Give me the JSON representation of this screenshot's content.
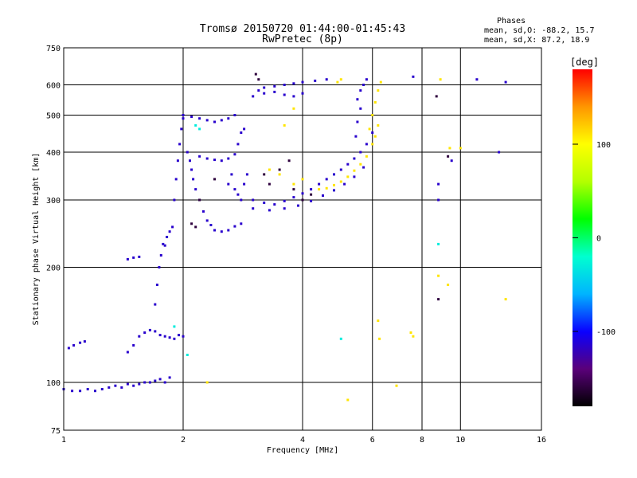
{
  "chart_data": {
    "type": "scatter",
    "title": "Tromsø 20150720 01:44:00-01:45:43",
    "subtitle": "RwPretec (8p)",
    "xlabel": "Frequency [MHz]",
    "ylabel": "Stationary phase Virtual Height [km]",
    "x_scale": "log",
    "y_scale": "log",
    "xlim": [
      1,
      16
    ],
    "ylim": [
      75,
      750
    ],
    "x_ticks": [
      1,
      2,
      4,
      6,
      8,
      10,
      16
    ],
    "y_ticks": [
      75,
      100,
      200,
      300,
      400,
      500,
      600,
      750
    ],
    "grid": true,
    "stats": {
      "header": "Phases",
      "line_O": "mean, sd,O: -88.2, 15.7",
      "line_X": "mean, sd,X:  87.2, 18.9"
    },
    "colorbar": {
      "label": "[deg]",
      "ticks": [
        100,
        0,
        -100
      ],
      "range": [
        -180,
        180
      ],
      "colors": [
        "#000000",
        "#5a007a",
        "#0a00ff",
        "#00b4ff",
        "#00ffd0",
        "#00ff00",
        "#b4ff00",
        "#ffff00",
        "#ff9600",
        "#ff0000"
      ]
    },
    "series": [
      {
        "color_phase": -115,
        "points": [
          [
            1.0,
            96
          ],
          [
            1.05,
            95
          ],
          [
            1.1,
            95
          ],
          [
            1.15,
            96
          ],
          [
            1.2,
            95
          ],
          [
            1.25,
            96
          ],
          [
            1.3,
            97
          ],
          [
            1.35,
            98
          ],
          [
            1.4,
            97
          ],
          [
            1.45,
            99
          ],
          [
            1.5,
            98
          ],
          [
            1.55,
            99
          ],
          [
            1.6,
            100
          ],
          [
            1.65,
            100
          ],
          [
            1.7,
            101
          ],
          [
            1.75,
            102
          ],
          [
            1.8,
            100
          ],
          [
            1.85,
            103
          ],
          [
            1.03,
            123
          ],
          [
            1.06,
            125
          ],
          [
            1.1,
            127
          ],
          [
            1.13,
            128
          ],
          [
            1.45,
            120
          ],
          [
            1.5,
            125
          ],
          [
            1.55,
            132
          ],
          [
            1.6,
            135
          ],
          [
            1.65,
            137
          ],
          [
            1.7,
            136
          ],
          [
            1.75,
            133
          ],
          [
            1.8,
            132
          ],
          [
            1.85,
            131
          ],
          [
            1.9,
            130
          ],
          [
            1.95,
            133
          ],
          [
            2.0,
            132
          ],
          [
            1.45,
            210
          ],
          [
            1.5,
            212
          ],
          [
            1.55,
            213
          ],
          [
            1.7,
            160
          ],
          [
            1.72,
            180
          ],
          [
            1.74,
            200
          ],
          [
            1.76,
            215
          ],
          [
            1.78,
            230
          ],
          [
            1.8,
            228
          ],
          [
            1.82,
            240
          ],
          [
            1.85,
            248
          ],
          [
            1.88,
            255
          ],
          [
            1.9,
            300
          ],
          [
            1.92,
            340
          ],
          [
            1.94,
            380
          ],
          [
            1.96,
            420
          ],
          [
            1.98,
            460
          ],
          [
            2.0,
            490
          ],
          [
            2.05,
            400
          ],
          [
            2.08,
            380
          ],
          [
            2.1,
            360
          ],
          [
            2.12,
            340
          ],
          [
            2.15,
            320
          ],
          [
            2.2,
            300
          ],
          [
            2.25,
            280
          ],
          [
            2.3,
            265
          ],
          [
            2.35,
            258
          ],
          [
            2.4,
            250
          ],
          [
            2.5,
            248
          ],
          [
            2.6,
            250
          ],
          [
            2.7,
            256
          ],
          [
            2.8,
            260
          ],
          [
            2.0,
            500
          ],
          [
            2.1,
            495
          ],
          [
            2.2,
            490
          ],
          [
            2.3,
            485
          ],
          [
            2.4,
            480
          ],
          [
            2.5,
            485
          ],
          [
            2.6,
            490
          ],
          [
            2.7,
            500
          ],
          [
            2.2,
            390
          ],
          [
            2.3,
            385
          ],
          [
            2.4,
            382
          ],
          [
            2.5,
            380
          ],
          [
            2.6,
            385
          ],
          [
            2.7,
            395
          ],
          [
            2.75,
            420
          ],
          [
            2.8,
            450
          ],
          [
            2.85,
            460
          ],
          [
            2.6,
            330
          ],
          [
            2.65,
            350
          ],
          [
            2.7,
            320
          ],
          [
            2.75,
            310
          ],
          [
            2.8,
            300
          ],
          [
            2.85,
            330
          ],
          [
            2.9,
            350
          ],
          [
            3.0,
            560
          ],
          [
            3.1,
            580
          ],
          [
            3.2,
            590
          ],
          [
            3.4,
            595
          ],
          [
            3.6,
            600
          ],
          [
            3.8,
            605
          ],
          [
            4.0,
            610
          ],
          [
            4.3,
            615
          ],
          [
            4.6,
            620
          ],
          [
            3.2,
            570
          ],
          [
            3.4,
            575
          ],
          [
            3.6,
            565
          ],
          [
            3.8,
            560
          ],
          [
            4.0,
            570
          ],
          [
            3.0,
            300
          ],
          [
            3.2,
            295
          ],
          [
            3.4,
            292
          ],
          [
            3.6,
            298
          ],
          [
            3.8,
            305
          ],
          [
            4.0,
            312
          ],
          [
            4.2,
            320
          ],
          [
            4.4,
            330
          ],
          [
            4.6,
            340
          ],
          [
            4.8,
            350
          ],
          [
            5.0,
            360
          ],
          [
            5.2,
            372
          ],
          [
            5.4,
            385
          ],
          [
            5.6,
            400
          ],
          [
            5.8,
            420
          ],
          [
            6.0,
            450
          ],
          [
            3.0,
            285
          ],
          [
            3.3,
            282
          ],
          [
            3.6,
            285
          ],
          [
            3.9,
            290
          ],
          [
            4.2,
            298
          ],
          [
            4.5,
            308
          ],
          [
            4.8,
            318
          ],
          [
            5.1,
            330
          ],
          [
            5.4,
            345
          ],
          [
            5.7,
            365
          ],
          [
            5.5,
            550
          ],
          [
            5.6,
            580
          ],
          [
            5.7,
            600
          ],
          [
            5.8,
            620
          ],
          [
            5.6,
            520
          ],
          [
            5.5,
            480
          ],
          [
            5.45,
            440
          ],
          [
            8.8,
            300
          ],
          [
            8.8,
            330
          ],
          [
            9.5,
            380
          ],
          [
            12.5,
            400
          ],
          [
            11.0,
            620
          ],
          [
            13.0,
            610
          ],
          [
            7.6,
            630
          ]
        ]
      },
      {
        "color_phase": 110,
        "points": [
          [
            4.4,
            320
          ],
          [
            4.6,
            322
          ],
          [
            4.8,
            328
          ],
          [
            5.0,
            335
          ],
          [
            5.2,
            345
          ],
          [
            5.4,
            358
          ],
          [
            5.6,
            372
          ],
          [
            5.8,
            390
          ],
          [
            6.0,
            420
          ],
          [
            5.9,
            460
          ],
          [
            6.0,
            500
          ],
          [
            6.1,
            540
          ],
          [
            6.2,
            580
          ],
          [
            6.3,
            610
          ],
          [
            6.2,
            470
          ],
          [
            6.1,
            440
          ],
          [
            3.8,
            330
          ],
          [
            4.0,
            340
          ],
          [
            3.5,
            350
          ],
          [
            3.3,
            360
          ],
          [
            3.6,
            470
          ],
          [
            3.8,
            520
          ],
          [
            4.9,
            610
          ],
          [
            5.0,
            620
          ],
          [
            2.3,
            100
          ],
          [
            5.2,
            90
          ],
          [
            6.9,
            98
          ],
          [
            8.8,
            190
          ],
          [
            8.9,
            620
          ],
          [
            9.3,
            180
          ],
          [
            9.4,
            410
          ],
          [
            10.0,
            410
          ],
          [
            13.0,
            165
          ],
          [
            6.2,
            145
          ],
          [
            6.25,
            130
          ],
          [
            7.5,
            135
          ],
          [
            7.6,
            132
          ]
        ]
      },
      {
        "color_phase": -160,
        "points": [
          [
            3.05,
            640
          ],
          [
            3.1,
            620
          ],
          [
            3.2,
            350
          ],
          [
            3.3,
            330
          ],
          [
            3.5,
            360
          ],
          [
            3.7,
            380
          ],
          [
            3.8,
            320
          ],
          [
            4.0,
            300
          ],
          [
            4.2,
            310
          ],
          [
            2.1,
            260
          ],
          [
            2.15,
            255
          ],
          [
            2.2,
            300
          ],
          [
            2.4,
            340
          ],
          [
            8.8,
            165
          ],
          [
            8.7,
            560
          ],
          [
            9.3,
            390
          ]
        ]
      },
      {
        "color_phase": -30,
        "points": [
          [
            2.15,
            470
          ],
          [
            2.2,
            460
          ],
          [
            8.8,
            230
          ],
          [
            5.0,
            130
          ],
          [
            1.9,
            140
          ],
          [
            2.05,
            118
          ]
        ]
      }
    ]
  }
}
